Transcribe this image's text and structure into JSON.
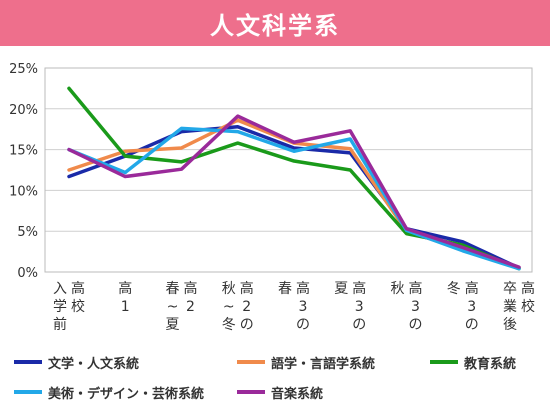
{
  "title": "人文科学系",
  "colors": {
    "title_bg": "#ee6f8c",
    "grid": "#cfcfcf",
    "axis_text": "#333333"
  },
  "chart_data": {
    "type": "line",
    "title": "人文科学系",
    "xlabel": "",
    "ylabel": "",
    "ylim": [
      0,
      25
    ],
    "yticks": [
      "0%",
      "5%",
      "10%",
      "15%",
      "20%",
      "25%"
    ],
    "grid": true,
    "legend": "bottom",
    "categories": [
      "入学前",
      "高校高1",
      "高2春〜夏",
      "高2秋〜冬",
      "高3春",
      "高3夏",
      "高3秋",
      "高3冬",
      "高校卒業後"
    ],
    "category_labels": [
      [
        "入学前",
        "高校"
      ],
      [
        "高1"
      ],
      [
        "春〜夏",
        "高2"
      ],
      [
        "秋〜冬",
        "高2の"
      ],
      [
        "春",
        "高3の"
      ],
      [
        "夏",
        "高3の"
      ],
      [
        "秋",
        "高3の"
      ],
      [
        "冬",
        "高3の"
      ],
      [
        "卒業後",
        "高校"
      ]
    ],
    "series": [
      {
        "name": "文学・人文系統",
        "color": "#1a2aa8",
        "values": [
          11.7,
          14.2,
          17.2,
          17.8,
          15.2,
          14.6,
          5.3,
          3.7,
          0.5
        ]
      },
      {
        "name": "語学・言語学系統",
        "color": "#f08a4b",
        "values": [
          12.5,
          14.8,
          15.2,
          18.6,
          15.8,
          15.1,
          5.0,
          2.8,
          0.5
        ]
      },
      {
        "name": "教育系統",
        "color": "#1a9a1a",
        "values": [
          22.5,
          14.2,
          13.5,
          15.8,
          13.6,
          12.5,
          4.7,
          3.3,
          0.4
        ]
      },
      {
        "name": "美術・デザイン・芸術系統",
        "color": "#22a8e8",
        "values": [
          15.0,
          12.2,
          17.6,
          17.2,
          14.8,
          16.3,
          5.1,
          2.6,
          0.4
        ]
      },
      {
        "name": "音楽系統",
        "color": "#9a2a9a",
        "values": [
          15.0,
          11.7,
          12.6,
          19.1,
          15.9,
          17.3,
          5.3,
          3.0,
          0.6
        ]
      }
    ]
  }
}
